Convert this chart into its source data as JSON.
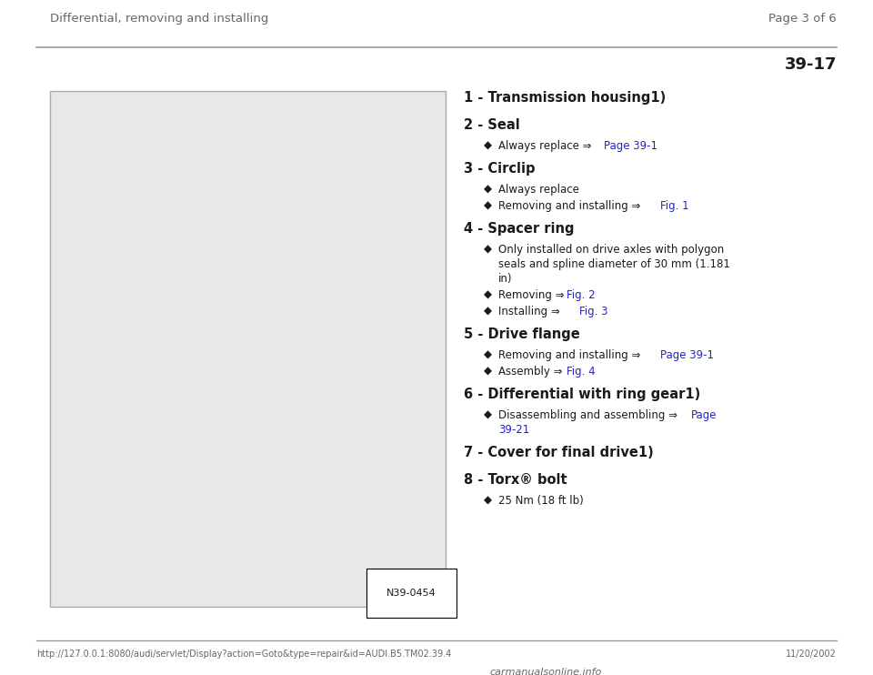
{
  "header_left": "Differential, removing and installing",
  "header_right": "Page 3 of 6",
  "page_number": "39-17",
  "bg_color": "#ffffff",
  "text_color": "#1a1a1a",
  "link_color": "#2222cc",
  "header_text_color": "#666666",
  "line_color": "#999999",
  "footer_url": "http://127.0.0.1:8080/audi/servlet/Display?action=Goto&type=repair&id=AUDI.B5.TM02.39.4",
  "footer_date": "11/20/2002",
  "footer_logo": "carmanualsonline.info",
  "items": [
    {
      "number": "1",
      "title": "Transmission housing1)",
      "bullets": []
    },
    {
      "number": "2",
      "title": "Seal",
      "bullets": [
        {
          "plain": "Always replace ⇒ ",
          "link": "Page 39-1"
        }
      ]
    },
    {
      "number": "3",
      "title": "Circlip",
      "bullets": [
        {
          "plain": "Always replace",
          "link": null
        },
        {
          "plain": "Removing and installing ⇒ ",
          "link": "Fig. 1"
        }
      ]
    },
    {
      "number": "4",
      "title": "Spacer ring",
      "bullets": [
        {
          "plain": "Only installed on drive axles with polygon\nseals and spline diameter of 30 mm (1.181\nin)",
          "link": null
        },
        {
          "plain": "Removing ⇒ ",
          "link": "Fig. 2"
        },
        {
          "plain": "Installing ⇒ ",
          "link": "Fig. 3"
        }
      ]
    },
    {
      "number": "5",
      "title": "Drive flange",
      "bullets": [
        {
          "plain": "Removing and installing ⇒ ",
          "link": "Page 39-1"
        },
        {
          "plain": "Assembly ⇒ ",
          "link": "Fig. 4"
        }
      ]
    },
    {
      "number": "6",
      "title": "Differential with ring gear1)",
      "bullets": [
        {
          "plain": "Disassembling and assembling ⇒ ",
          "link": "Page\n39-21"
        }
      ]
    },
    {
      "number": "7",
      "title": "Cover for final drive1)",
      "bullets": []
    },
    {
      "number": "8",
      "title": "Torx® bolt",
      "bullets": [
        {
          "plain": "25 Nm (18 ft lb)",
          "link": null
        }
      ]
    }
  ]
}
